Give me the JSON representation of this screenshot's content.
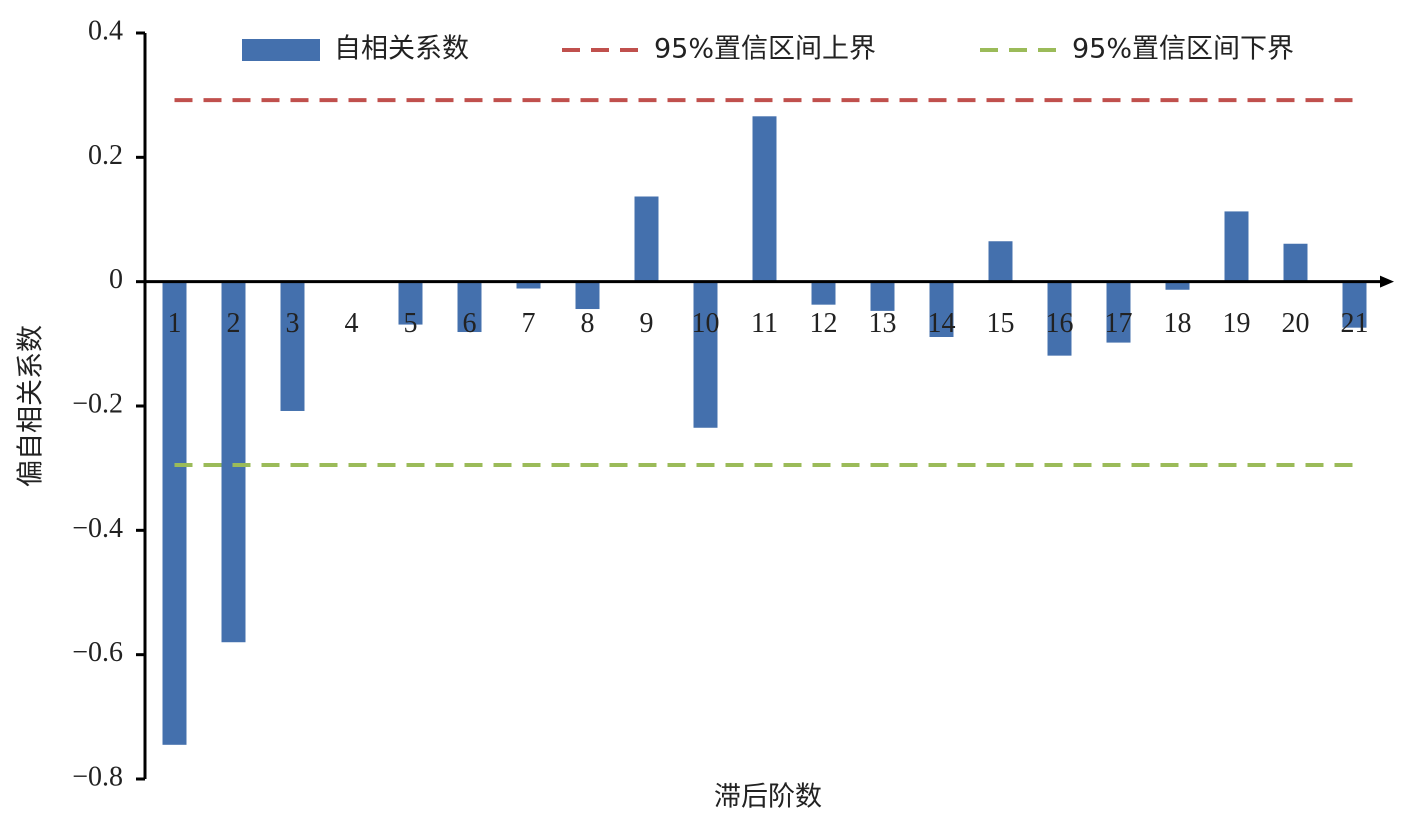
{
  "chart_data": {
    "type": "bar",
    "x_label": "滞后阶数",
    "y_label": "偏自相关系数",
    "categories": [
      "1",
      "2",
      "3",
      "4",
      "5",
      "6",
      "7",
      "8",
      "9",
      "10",
      "11",
      "12",
      "13",
      "14",
      "15",
      "16",
      "17",
      "18",
      "19",
      "20",
      "21"
    ],
    "series": [
      {
        "name": "自相关系数",
        "type": "bar",
        "color": "#4470ad",
        "values": [
          -0.745,
          -0.58,
          -0.208,
          0.001,
          -0.069,
          -0.081,
          -0.011,
          -0.044,
          0.137,
          -0.235,
          0.266,
          -0.037,
          -0.047,
          -0.089,
          0.065,
          -0.119,
          -0.098,
          -0.013,
          0.113,
          0.061,
          -0.074
        ]
      },
      {
        "name": "95%置信区间上界",
        "type": "line",
        "dashed": true,
        "color": "#c0504d",
        "values": [
          0.292,
          0.292,
          0.292,
          0.292,
          0.292,
          0.292,
          0.292,
          0.292,
          0.292,
          0.292,
          0.292,
          0.292,
          0.292,
          0.292,
          0.292,
          0.292,
          0.292,
          0.292,
          0.292,
          0.292,
          0.292
        ]
      },
      {
        "name": "95%置信区间下界",
        "type": "line",
        "dashed": true,
        "color": "#9bbb59",
        "values": [
          -0.295,
          -0.295,
          -0.295,
          -0.295,
          -0.295,
          -0.295,
          -0.295,
          -0.295,
          -0.295,
          -0.295,
          -0.295,
          -0.295,
          -0.295,
          -0.295,
          -0.295,
          -0.295,
          -0.295,
          -0.295,
          -0.295,
          -0.295,
          -0.295
        ]
      }
    ],
    "ylim": [
      -0.8,
      0.4
    ],
    "yticks": [
      0.4,
      0.2,
      0,
      {
        "value": -0.2,
        "label": "−0.2"
      },
      {
        "value": -0.4,
        "label": "−0.4"
      },
      {
        "value": -0.6,
        "label": "−0.6"
      },
      {
        "value": -0.8,
        "label": "−0.8"
      }
    ],
    "grid": false,
    "legend": "top"
  }
}
